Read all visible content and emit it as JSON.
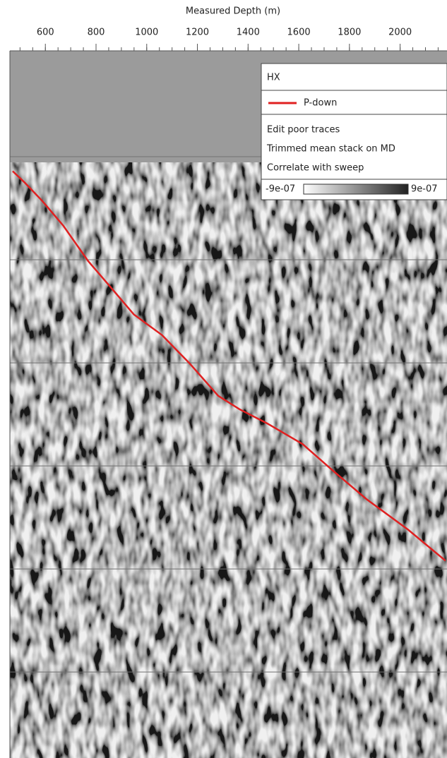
{
  "chart_data": {
    "type": "line",
    "xlabel": "Measured Depth (m)",
    "xlim": [
      460,
      2185
    ],
    "xticks": [
      600,
      800,
      1000,
      1200,
      1400,
      1600,
      1800,
      2000
    ],
    "xminor_step": 50,
    "ylim": [
      0,
      6.8
    ],
    "yticks": [
      1,
      2,
      3,
      4,
      5,
      6
    ],
    "grid": true,
    "legend": {
      "title": "HX",
      "notes": [
        "Edit poor traces",
        "Trimmed mean stack on MD",
        "Correlate with sweep"
      ],
      "colorbar": [
        {
          "value": -9e-07,
          "label": "-9e-07"
        },
        {
          "value": 9e-07,
          "label": "9e-07"
        }
      ]
    },
    "series": [
      {
        "name": "P-down",
        "color": "#e02020",
        "x": [
          471,
          518,
          588,
          671,
          768,
          866,
          949,
          1060,
          1171,
          1282,
          1366,
          1477,
          1616,
          1727,
          1866,
          2032,
          2179
        ],
        "values": [
          1.14,
          1.25,
          1.43,
          1.67,
          2.01,
          2.29,
          2.53,
          2.73,
          3.01,
          3.32,
          3.45,
          3.59,
          3.79,
          4.03,
          4.32,
          4.62,
          4.92
        ]
      }
    ]
  }
}
